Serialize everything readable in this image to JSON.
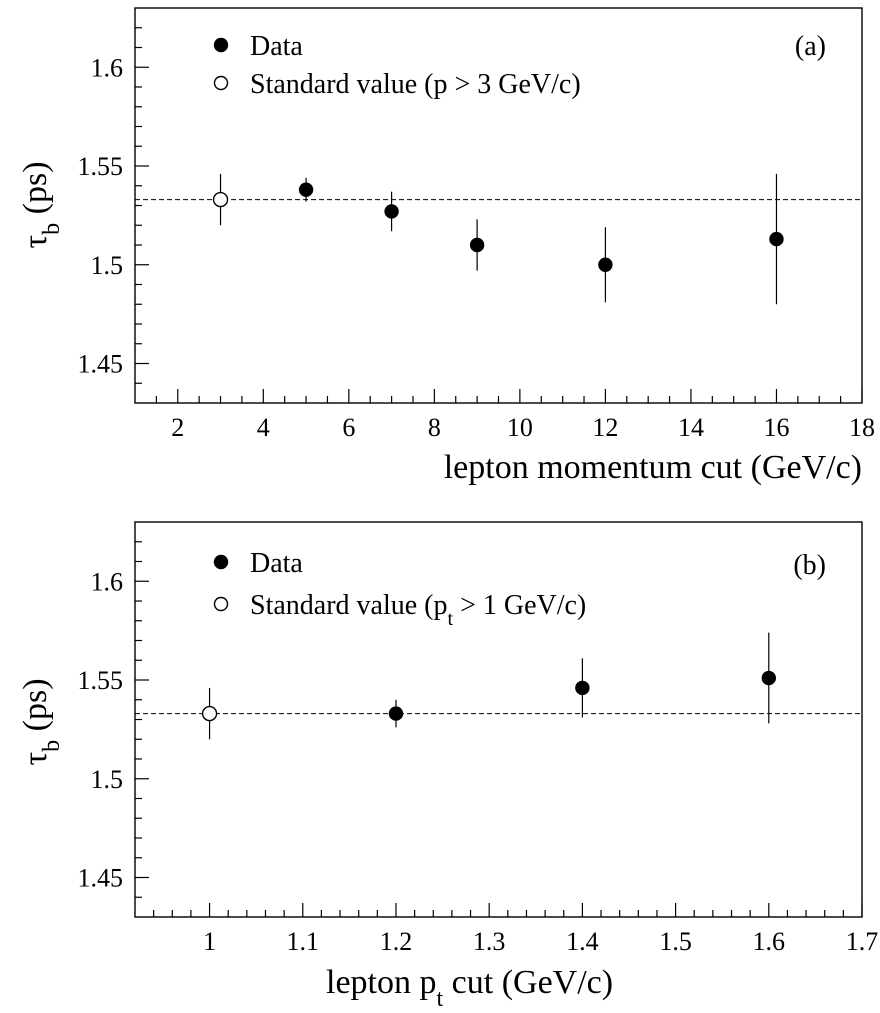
{
  "chart_data": [
    {
      "type": "scatter",
      "panel_label": "(a)",
      "xlabel": "lepton momentum cut (GeV/c)",
      "ylabel": "τ",
      "ylabel_sub": "b",
      "ylabel_unit": " (ps)",
      "xlim": [
        1,
        18
      ],
      "ylim": [
        1.43,
        1.63
      ],
      "x_major_ticks": [
        2,
        4,
        6,
        8,
        10,
        12,
        14,
        16,
        18
      ],
      "x_tick_labels": [
        "2",
        "4",
        "6",
        "8",
        "10",
        "12",
        "14",
        "16",
        "18"
      ],
      "x_minor_step": 0.5,
      "y_major_ticks": [
        1.45,
        1.5,
        1.55,
        1.6
      ],
      "y_tick_labels": [
        "1.45",
        "1.5",
        "1.55",
        "1.6"
      ],
      "y_minor_step": 0.01,
      "reference_line": 1.533,
      "legend_position": "top-left",
      "legend": [
        {
          "marker": "filled",
          "text": "Data"
        },
        {
          "marker": "open",
          "text": "Standard value (p > 3 GeV/c)"
        }
      ],
      "series": [
        {
          "name": "Data",
          "marker": "filled",
          "x": [
            5,
            7,
            9,
            12,
            16
          ],
          "y": [
            1.538,
            1.527,
            1.51,
            1.5,
            1.513
          ],
          "err": [
            0.006,
            0.01,
            0.013,
            0.019,
            0.033
          ]
        },
        {
          "name": "Standard value (p > 3 GeV/c)",
          "marker": "open",
          "x": [
            3
          ],
          "y": [
            1.533
          ],
          "err": [
            0.013
          ]
        }
      ]
    },
    {
      "type": "scatter",
      "panel_label": "(b)",
      "xlabel_pre": "lepton p",
      "xlabel_sub": "t",
      "xlabel_post": " cut (GeV/c)",
      "ylabel": "τ",
      "ylabel_sub": "b",
      "ylabel_unit": " (ps)",
      "xlim": [
        0.92,
        1.7
      ],
      "ylim": [
        1.43,
        1.63
      ],
      "x_major_ticks": [
        1,
        1.1,
        1.2,
        1.3,
        1.4,
        1.5,
        1.6,
        1.7
      ],
      "x_tick_labels": [
        "1",
        "1.1",
        "1.2",
        "1.3",
        "1.4",
        "1.5",
        "1.6",
        "1.7"
      ],
      "x_minor_step": 0.02,
      "y_major_ticks": [
        1.45,
        1.5,
        1.55,
        1.6
      ],
      "y_tick_labels": [
        "1.45",
        "1.5",
        "1.55",
        "1.6"
      ],
      "y_minor_step": 0.01,
      "reference_line": 1.533,
      "legend_position": "top-left",
      "legend": [
        {
          "marker": "filled",
          "text": "Data"
        },
        {
          "marker": "open",
          "text_pre": "Standard value (p",
          "text_sub": "t",
          "text_post": " > 1 GeV/c)"
        }
      ],
      "series": [
        {
          "name": "Data",
          "marker": "filled",
          "x": [
            1.2,
            1.4,
            1.6
          ],
          "y": [
            1.533,
            1.546,
            1.551
          ],
          "err": [
            0.007,
            0.015,
            0.023
          ]
        },
        {
          "name": "Standard value (pt > 1 GeV/c)",
          "marker": "open",
          "x": [
            1.0
          ],
          "y": [
            1.533
          ],
          "err": [
            0.013
          ]
        }
      ]
    }
  ]
}
